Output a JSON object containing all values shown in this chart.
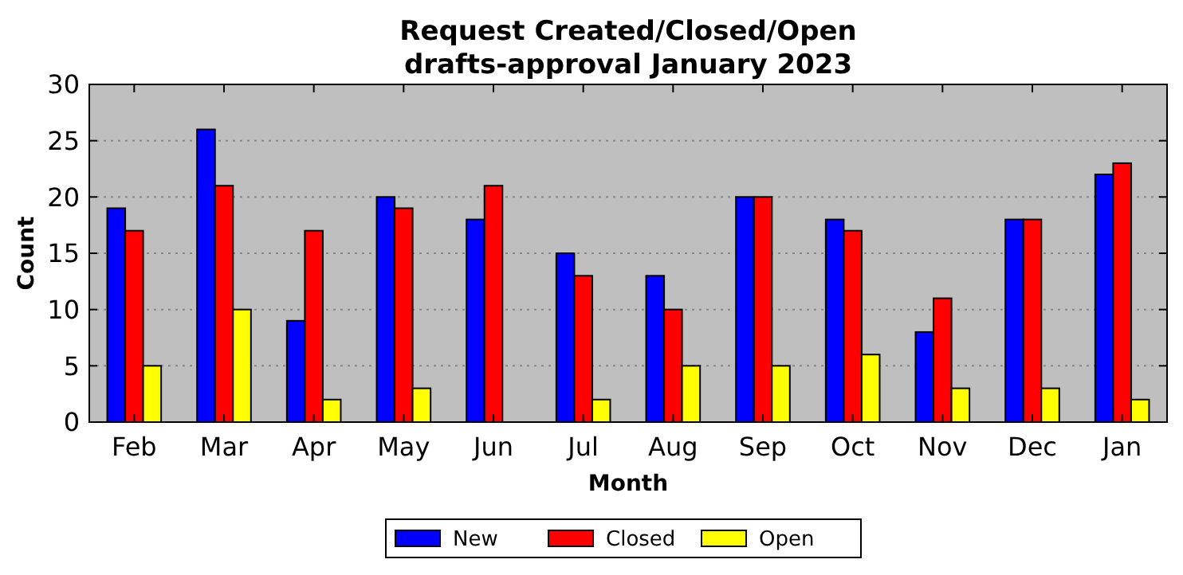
{
  "chart_data": {
    "type": "bar",
    "title": "Request Created/Closed/Open\ndrafts-approval January 2023",
    "xlabel": "Month",
    "ylabel": "Count",
    "categories": [
      "Feb",
      "Mar",
      "Apr",
      "May",
      "Jun",
      "Jul",
      "Aug",
      "Sep",
      "Oct",
      "Nov",
      "Dec",
      "Jan"
    ],
    "series": [
      {
        "name": "New",
        "color": "#0000ff",
        "values": [
          19,
          26,
          9,
          20,
          18,
          15,
          13,
          20,
          18,
          8,
          18,
          22
        ]
      },
      {
        "name": "Closed",
        "color": "#ff0000",
        "values": [
          17,
          21,
          17,
          19,
          21,
          13,
          10,
          20,
          17,
          11,
          18,
          23
        ]
      },
      {
        "name": "Open",
        "color": "#ffff00",
        "values": [
          5,
          10,
          2,
          3,
          0,
          2,
          5,
          5,
          6,
          3,
          3,
          2
        ]
      }
    ],
    "ylim": [
      0,
      30
    ],
    "yticks": [
      0,
      5,
      10,
      15,
      20,
      25,
      30
    ],
    "grid": "y",
    "legend": "bottom"
  }
}
